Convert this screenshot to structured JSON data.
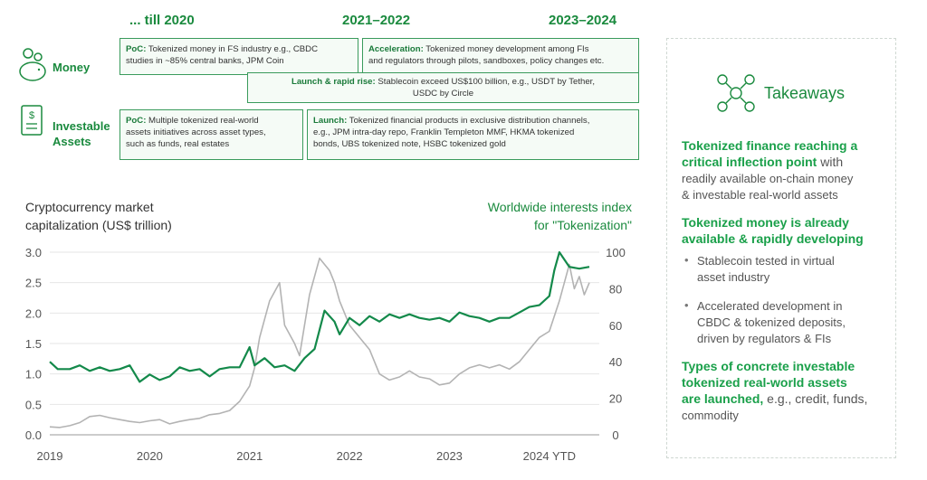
{
  "header": {
    "periods": [
      "... till 2020",
      "2021–2022",
      "2023–2024"
    ]
  },
  "rows": {
    "money": "Money",
    "assets_line1": "Investable",
    "assets_line2": "Assets"
  },
  "boxes": {
    "poc_money": {
      "label": "PoC:",
      "line1": " Tokenized money in FS industry e.g., CBDC",
      "line2": "studies in ~85% central banks, JPM Coin"
    },
    "acceleration": {
      "label": "Acceleration:",
      "line1": " Tokenized money development among FIs",
      "line2": "and regulators through pilots, sandboxes, policy changes etc."
    },
    "launch_rapid": {
      "label": "Launch & rapid rise:",
      "line1": " Stablecoin exceed US$100 billion, e.g., USDT by Tether,",
      "line2": "USDC by Circle"
    },
    "poc_assets": {
      "label": "PoC:",
      "line1": " Multiple tokenized real-world",
      "line2": "assets initiatives across asset types,",
      "line3": "such as funds, real estates"
    },
    "launch_assets": {
      "label": "Launch:",
      "line1": " Tokenized financial products in exclusive distribution channels,",
      "line2": "e.g., JPM intra-day repo, Franklin Templeton MMF, HKMA tokenized",
      "line3": "bonds, UBS tokenized note, HSBC tokenized gold"
    }
  },
  "takeaways": {
    "title": "Takeaways",
    "h1_line1": "Tokenized finance reaching a",
    "h1_line2": "critical inflection point",
    "h1_tail": " with",
    "t1_line1": "readily available on-chain money",
    "t1_line2": "& investable real-world assets",
    "h2_line1": "Tokenized money is already",
    "h2_line2": "available & rapidly developing",
    "b1_line1": "Stablecoin tested in virtual",
    "b1_line2": "asset industry",
    "b2_line1": "Accelerated development in",
    "b2_line2": "CBDC & tokenized deposits,",
    "b2_line3": "driven by regulators & FIs",
    "h3_line1": "Types of concrete investable",
    "h3_line2": "tokenized real-world assets",
    "h3_line3": "are launched,",
    "h3_tail": " e.g., credit, funds,",
    "t3_line2": "commodity",
    "bullet": "•"
  },
  "colors": {
    "green": "#1a8a3e",
    "series_green": "#13894a",
    "series_gray": "#b3b3b3",
    "grid": "#e6e6e6"
  },
  "chart_data": {
    "type": "line",
    "ylabel_left_line1": "Cryptocurrency market",
    "ylabel_left_line2": "capitalization (US$ trillion)",
    "ylabel_right_line1": "Worldwide interests index",
    "ylabel_right_line2": "for \"Tokenization\"",
    "x_ticks": [
      "2019",
      "2020",
      "2021",
      "2022",
      "2023",
      "2024 YTD"
    ],
    "x_tick_positions": [
      2019,
      2020,
      2021,
      2022,
      2023,
      2024
    ],
    "xlim": [
      2019,
      2024.5
    ],
    "ylim_left": [
      0,
      3.0
    ],
    "ylim_right": [
      0,
      100
    ],
    "left_ticks": [
      "0.0",
      "0.5",
      "1.0",
      "1.5",
      "2.0",
      "2.5",
      "3.0"
    ],
    "left_tick_values": [
      0,
      0.5,
      1.0,
      1.5,
      2.0,
      2.5,
      3.0
    ],
    "right_ticks": [
      "0",
      "20",
      "40",
      "60",
      "80",
      "100"
    ],
    "right_tick_values": [
      0,
      20,
      40,
      60,
      80,
      100
    ],
    "grid": true,
    "series": [
      {
        "axis": "left",
        "x": [
          2019.0,
          2019.1,
          2019.2,
          2019.3,
          2019.4,
          2019.5,
          2019.6,
          2019.7,
          2019.8,
          2019.9,
          2020.0,
          2020.1,
          2020.2,
          2020.3,
          2020.4,
          2020.5,
          2020.6,
          2020.7,
          2020.8,
          2020.9,
          2021.0,
          2021.05,
          2021.1,
          2021.2,
          2021.3,
          2021.35,
          2021.45,
          2021.5,
          2021.55,
          2021.6,
          2021.7,
          2021.8,
          2021.85,
          2021.9,
          2022.0,
          2022.1,
          2022.2,
          2022.3,
          2022.4,
          2022.5,
          2022.6,
          2022.7,
          2022.8,
          2022.9,
          2023.0,
          2023.1,
          2023.2,
          2023.3,
          2023.4,
          2023.5,
          2023.6,
          2023.7,
          2023.8,
          2023.9,
          2024.0,
          2024.1,
          2024.15,
          2024.2,
          2024.25,
          2024.3,
          2024.35,
          2024.4
        ],
        "values": [
          0.13,
          0.12,
          0.15,
          0.2,
          0.3,
          0.32,
          0.28,
          0.25,
          0.22,
          0.2,
          0.23,
          0.25,
          0.18,
          0.22,
          0.25,
          0.27,
          0.33,
          0.35,
          0.4,
          0.55,
          0.8,
          1.1,
          1.6,
          2.2,
          2.5,
          1.8,
          1.5,
          1.3,
          1.8,
          2.3,
          2.9,
          2.7,
          2.5,
          2.2,
          1.8,
          1.6,
          1.4,
          1.0,
          0.9,
          0.95,
          1.05,
          0.95,
          0.92,
          0.82,
          0.85,
          1.0,
          1.1,
          1.15,
          1.1,
          1.15,
          1.08,
          1.2,
          1.4,
          1.6,
          1.7,
          2.2,
          2.5,
          2.8,
          2.4,
          2.6,
          2.3,
          2.5
        ]
      },
      {
        "axis": "right",
        "x": [
          2019.0,
          2019.08,
          2019.2,
          2019.3,
          2019.4,
          2019.5,
          2019.6,
          2019.7,
          2019.8,
          2019.9,
          2020.0,
          2020.1,
          2020.2,
          2020.3,
          2020.4,
          2020.5,
          2020.6,
          2020.7,
          2020.8,
          2020.9,
          2021.0,
          2021.05,
          2021.15,
          2021.25,
          2021.35,
          2021.45,
          2021.55,
          2021.65,
          2021.75,
          2021.85,
          2021.9,
          2022.0,
          2022.1,
          2022.2,
          2022.3,
          2022.4,
          2022.5,
          2022.6,
          2022.7,
          2022.8,
          2022.9,
          2023.0,
          2023.1,
          2023.2,
          2023.3,
          2023.4,
          2023.5,
          2023.6,
          2023.7,
          2023.8,
          2023.9,
          2024.0,
          2024.05,
          2024.1,
          2024.2,
          2024.3,
          2024.4
        ],
        "values": [
          40,
          36,
          36,
          38,
          35,
          37,
          35,
          36,
          38,
          29,
          33,
          30,
          32,
          37,
          35,
          36,
          32,
          36,
          37,
          37,
          48,
          38,
          42,
          37,
          38,
          35,
          42,
          47,
          68,
          62,
          55,
          64,
          60,
          65,
          62,
          66,
          64,
          66,
          64,
          63,
          64,
          62,
          67,
          65,
          64,
          62,
          64,
          64,
          67,
          70,
          71,
          76,
          90,
          100,
          92,
          91,
          92
        ]
      }
    ]
  }
}
